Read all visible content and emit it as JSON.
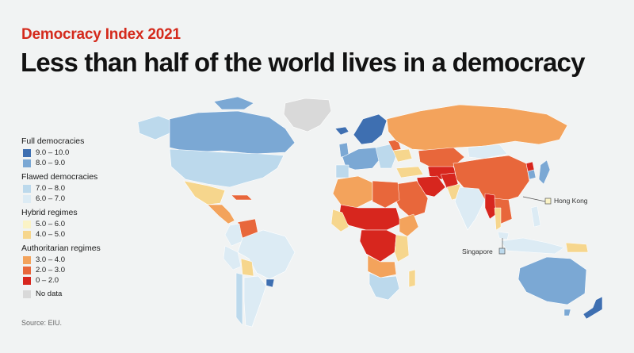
{
  "kicker": "Democracy Index 2021",
  "headline": "Less than half of the world lives in a democracy",
  "legend": {
    "groups": [
      {
        "title": "Full democracies",
        "items": [
          {
            "label": "9.0 – 10.0",
            "color": "#3e6fb1"
          },
          {
            "label": "8.0 – 9.0",
            "color": "#7ba8d4"
          }
        ]
      },
      {
        "title": "Flawed democracies",
        "items": [
          {
            "label": "7.0 – 8.0",
            "color": "#bcd9ec"
          },
          {
            "label": "6.0 – 7.0",
            "color": "#dcebf4"
          }
        ]
      },
      {
        "title": "Hybrid regimes",
        "items": [
          {
            "label": "5.0 – 6.0",
            "color": "#fbf3c6"
          },
          {
            "label": "4.0 – 5.0",
            "color": "#f6d68d"
          }
        ]
      },
      {
        "title": "Authoritarian regimes",
        "items": [
          {
            "label": "3.0 – 4.0",
            "color": "#f3a35c"
          },
          {
            "label": "2.0 – 3.0",
            "color": "#e8673b"
          },
          {
            "label": "0 – 2.0",
            "color": "#d7261e"
          }
        ]
      }
    ],
    "no_data": {
      "label": "No data",
      "color": "#d9d9d9"
    }
  },
  "callouts": {
    "hong_kong": "Hong Kong",
    "singapore": "Singapore"
  },
  "source": "Source: EIU."
}
